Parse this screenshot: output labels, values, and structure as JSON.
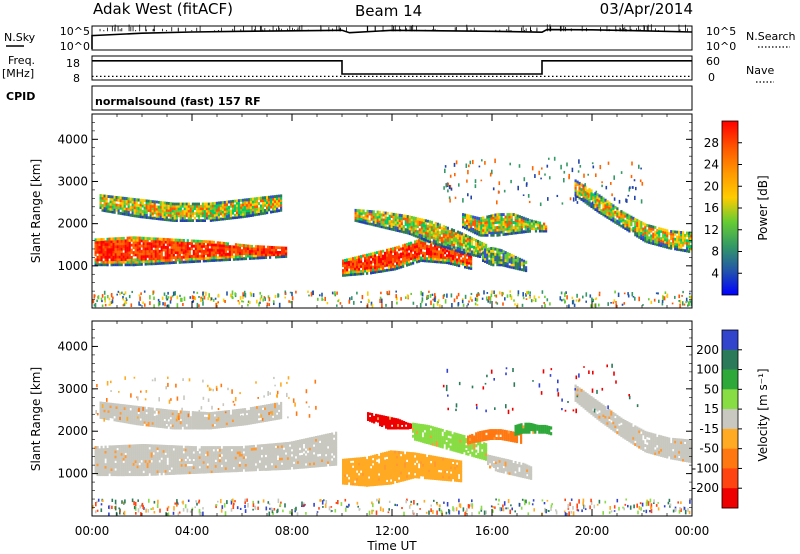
{
  "header": {
    "station": "Adak West (fitACF)",
    "beam": "Beam 14",
    "date": "03/Apr/2014"
  },
  "nsky_panel": {
    "left_label": "N.Sky",
    "right_label": "N.Search",
    "left_ticks": [
      "10^5",
      "10^0"
    ],
    "right_ticks": [
      "10^5",
      "10^0"
    ],
    "series": [
      {
        "x": [
          0,
          2,
          4,
          6,
          8,
          10,
          10.3,
          12,
          14,
          16,
          18,
          18.2,
          20,
          22,
          24
        ],
        "values": [
          60,
          70,
          75,
          78,
          80,
          82,
          72,
          82,
          80,
          78,
          74,
          85,
          84,
          80,
          75
        ]
      }
    ]
  },
  "freq_panel": {
    "left_label_1": "Freq.",
    "left_label_2": "[MHz]",
    "right_label": "Nave",
    "left_ticks": [
      "18",
      "8"
    ],
    "right_ticks": [
      "60",
      "0"
    ],
    "freq_steps": [
      [
        0,
        10,
        16
      ],
      [
        10,
        18,
        10.5
      ],
      [
        18,
        24,
        16
      ]
    ],
    "nave_steps": [
      [
        0,
        10,
        9.5
      ],
      [
        10,
        18,
        9.5
      ],
      [
        18,
        24,
        9.5
      ]
    ]
  },
  "cpid": {
    "label": "CPID",
    "text": "normalsound (fast) 157 RF"
  },
  "chart_data": [
    {
      "type": "heatmap",
      "quantity": "power",
      "ylabel": "Slant Range [km]",
      "ylim": [
        0,
        4600
      ],
      "yticks": [
        "1000",
        "2000",
        "3000",
        "4000"
      ],
      "xlim": [
        0,
        24
      ],
      "colorbar": {
        "label": "Power [dB]",
        "ticks": [
          "28",
          "24",
          "20",
          "16",
          "12",
          "8",
          "4"
        ],
        "colors": [
          "#ff0000",
          "#ff5a00",
          "#ff9900",
          "#ffcc00",
          "#66cc33",
          "#339966",
          "#2255aa",
          "#0000ff"
        ]
      },
      "bands": [
        {
          "x_start": 0.1,
          "x_end": 7.8,
          "y_top": [
            1650,
            1700,
            1650,
            1600,
            1500,
            1450
          ],
          "y_bottom": [
            1000,
            1000,
            1050,
            1100,
            1150,
            1200
          ],
          "level": "high"
        },
        {
          "x_start": 0.3,
          "x_end": 7.6,
          "y_top": [
            2700,
            2600,
            2500,
            2500,
            2600,
            2700
          ],
          "y_bottom": [
            2300,
            2150,
            2050,
            2050,
            2150,
            2300
          ],
          "level": "mid"
        },
        {
          "x_start": 10.0,
          "x_end": 15.2,
          "y_top": [
            1150,
            1300,
            1450,
            1650,
            1500,
            1300
          ],
          "y_bottom": [
            750,
            800,
            900,
            1100,
            1050,
            900
          ],
          "level": "high"
        },
        {
          "x_start": 10.5,
          "x_end": 15.8,
          "y_top": [
            2350,
            2300,
            2200,
            2050,
            1800,
            1500
          ],
          "y_bottom": [
            2050,
            1900,
            1750,
            1500,
            1300,
            1150
          ],
          "level": "mid"
        },
        {
          "x_start": 14.8,
          "x_end": 18.2,
          "y_top": [
            2250,
            2150,
            2250,
            2250,
            2100,
            2000
          ],
          "y_bottom": [
            1900,
            1700,
            1700,
            1750,
            1800,
            1800
          ],
          "level": "mid"
        },
        {
          "x_start": 15.6,
          "x_end": 17.4,
          "y_top": [
            1400,
            1450,
            1400,
            1300,
            1200,
            1100
          ],
          "y_bottom": [
            1100,
            1000,
            1000,
            950,
            900,
            850
          ],
          "level": "low"
        },
        {
          "x_start": 19.3,
          "x_end": 24.0,
          "y_top": [
            3050,
            2700,
            2300,
            2000,
            1850,
            1800
          ],
          "y_bottom": [
            2650,
            2250,
            1900,
            1550,
            1400,
            1300
          ],
          "level": "mid"
        }
      ]
    },
    {
      "type": "heatmap",
      "quantity": "velocity",
      "ylabel": "Slant Range [km]",
      "ylim": [
        0,
        4600
      ],
      "yticks": [
        "1000",
        "2000",
        "3000",
        "4000"
      ],
      "xlim": [
        0,
        24
      ],
      "xticks": [
        "00:00",
        "04:00",
        "08:00",
        "12:00",
        "16:00",
        "20:00",
        "00:00"
      ],
      "xlabel": "Time UT",
      "colorbar": {
        "label": "Velocity [m s⁻¹]",
        "ticks": [
          "200",
          "100",
          "50",
          "15",
          "-15",
          "-50",
          "-100",
          "-200"
        ],
        "colors": [
          "#3344cc",
          "#2b7a5a",
          "#2fa83a",
          "#88dd44",
          "#c8c8c0",
          "#ffaa22",
          "#ff7711",
          "#ff4411",
          "#ee0000"
        ]
      },
      "bands": [
        {
          "x_start": 0.1,
          "x_end": 9.8,
          "y_top": [
            1650,
            1700,
            1650,
            1650,
            1750,
            2000
          ],
          "y_bottom": [
            950,
            950,
            1000,
            1050,
            1100,
            1200
          ],
          "color": "#c8c8c0"
        },
        {
          "x_start": 0.3,
          "x_end": 7.6,
          "y_top": [
            2700,
            2600,
            2500,
            2450,
            2550,
            2700
          ],
          "y_bottom": [
            2300,
            2150,
            2050,
            2050,
            2150,
            2300
          ],
          "color": "#c8c8c0"
        },
        {
          "x_start": 10.0,
          "x_end": 14.8,
          "y_top": [
            1350,
            1400,
            1550,
            1500,
            1400,
            1300
          ],
          "y_bottom": [
            750,
            700,
            750,
            900,
            850,
            800
          ],
          "color": "#ffaa22"
        },
        {
          "x_start": 11.0,
          "x_end": 13.0,
          "y_top": [
            2450,
            2400,
            2350,
            2300,
            2200,
            2150
          ],
          "y_bottom": [
            2250,
            2150,
            2050,
            2050,
            2050,
            2100
          ],
          "color": "#ee0000"
        },
        {
          "x_start": 12.8,
          "x_end": 15.8,
          "y_top": [
            2200,
            2150,
            2050,
            1950,
            1850,
            1700
          ],
          "y_bottom": [
            1800,
            1700,
            1600,
            1500,
            1400,
            1300
          ],
          "color": "#88dd44"
        },
        {
          "x_start": 15.0,
          "x_end": 17.2,
          "y_top": [
            1900,
            2000,
            2050,
            2050,
            2000,
            1950
          ],
          "y_bottom": [
            1700,
            1750,
            1800,
            1800,
            1750,
            1700
          ],
          "color": "#ff7711"
        },
        {
          "x_start": 16.9,
          "x_end": 18.4,
          "y_top": [
            2150,
            2200,
            2200,
            2150,
            2150,
            2100
          ],
          "y_bottom": [
            1900,
            1950,
            1950,
            1950,
            1950,
            1900
          ],
          "color": "#2fa83a"
        },
        {
          "x_start": 15.8,
          "x_end": 17.6,
          "y_top": [
            1450,
            1400,
            1350,
            1300,
            1250,
            1150
          ],
          "y_bottom": [
            1150,
            1050,
            1000,
            950,
            900,
            850
          ],
          "color": "#c8c8c0"
        },
        {
          "x_start": 19.3,
          "x_end": 24.0,
          "y_top": [
            3100,
            2700,
            2300,
            2000,
            1850,
            1800
          ],
          "y_bottom": [
            2700,
            2250,
            1850,
            1500,
            1350,
            1250
          ],
          "color": "#c8c8c0"
        }
      ]
    }
  ],
  "colors": {
    "power_high": [
      "#ff0000",
      "#ff3300",
      "#ff6600"
    ],
    "power_mid": [
      "#00cc66",
      "#66cc33",
      "#ffcc00",
      "#ff9900",
      "#ff5500"
    ],
    "power_low": [
      "#3355cc",
      "#2b7a5a",
      "#66cc33",
      "#ffcc00"
    ],
    "edge_blue": "#2244aa"
  }
}
